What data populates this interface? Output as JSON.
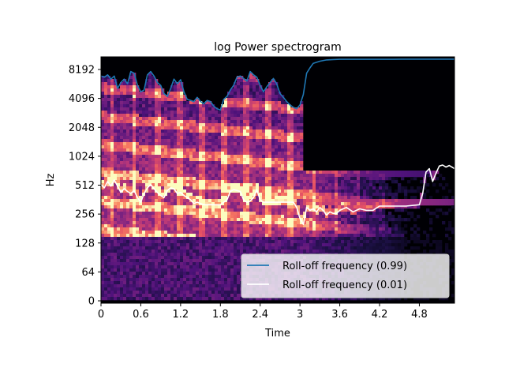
{
  "chart_data": {
    "type": "heatmap",
    "title": "log Power spectrogram",
    "xlabel": "Time",
    "ylabel": "Hz",
    "x_ticks": [
      "0",
      "0.6",
      "1.2",
      "1.8",
      "2.4",
      "3",
      "3.6",
      "4.2",
      "4.8"
    ],
    "x_tick_values": [
      0,
      0.6,
      1.2,
      1.8,
      2.4,
      3.0,
      3.6,
      4.2,
      4.8
    ],
    "y_ticks": [
      "0",
      "64",
      "128",
      "256",
      "512",
      "1024",
      "2048",
      "4096",
      "8192"
    ],
    "y_tick_values": [
      0,
      64,
      128,
      256,
      512,
      1024,
      2048,
      4096,
      8192
    ],
    "xlim": [
      0,
      5.33
    ],
    "y_scale": "symlog",
    "ylim": [
      0,
      11025
    ],
    "colormap": "magma",
    "legend_position": "lower-right",
    "series": [
      {
        "name": "Roll-off frequency (0.99)",
        "color": "#1f77b4",
        "x": [
          0.0,
          0.05,
          0.1,
          0.15,
          0.2,
          0.25,
          0.3,
          0.35,
          0.4,
          0.45,
          0.5,
          0.55,
          0.6,
          0.65,
          0.7,
          0.75,
          0.8,
          0.85,
          0.9,
          0.95,
          1.0,
          1.05,
          1.1,
          1.15,
          1.2,
          1.25,
          1.3,
          1.35,
          1.4,
          1.45,
          1.5,
          1.55,
          1.6,
          1.65,
          1.7,
          1.75,
          1.8,
          1.85,
          1.9,
          1.95,
          2.0,
          2.05,
          2.1,
          2.15,
          2.2,
          2.25,
          2.3,
          2.35,
          2.4,
          2.45,
          2.5,
          2.55,
          2.6,
          2.65,
          2.7,
          2.75,
          2.8,
          2.85,
          2.9,
          2.95,
          3.0,
          3.05,
          3.1,
          3.15,
          3.2,
          3.3,
          3.4,
          3.5,
          3.6,
          3.8,
          4.0,
          4.2,
          4.4,
          4.6,
          4.8,
          5.0,
          5.2,
          5.33
        ],
        "y": [
          7000,
          6800,
          7200,
          6500,
          7000,
          5200,
          6000,
          6500,
          5800,
          7800,
          7500,
          5600,
          4800,
          5000,
          7200,
          7800,
          7000,
          6000,
          5600,
          4600,
          4300,
          5200,
          6500,
          5800,
          6400,
          4800,
          4000,
          3900,
          3800,
          4200,
          3800,
          3600,
          3900,
          3800,
          3400,
          3200,
          3100,
          4000,
          4300,
          5000,
          5600,
          6800,
          7000,
          6600,
          6200,
          7800,
          7200,
          6800,
          5600,
          4800,
          5400,
          6000,
          6600,
          5800,
          4600,
          4200,
          3800,
          3500,
          3300,
          3200,
          3500,
          4500,
          7500,
          8500,
          9500,
          10000,
          10300,
          10400,
          10450,
          10450,
          10450,
          10450,
          10450,
          10500,
          10500,
          10500,
          10500,
          10500
        ]
      },
      {
        "name": "Roll-off frequency (0.01)",
        "color": "#ffffff",
        "x": [
          0.0,
          0.05,
          0.1,
          0.15,
          0.2,
          0.25,
          0.3,
          0.35,
          0.4,
          0.45,
          0.5,
          0.55,
          0.6,
          0.65,
          0.7,
          0.75,
          0.8,
          0.85,
          0.9,
          0.95,
          1.0,
          1.05,
          1.1,
          1.15,
          1.2,
          1.25,
          1.3,
          1.35,
          1.4,
          1.45,
          1.5,
          1.55,
          1.6,
          1.65,
          1.7,
          1.75,
          1.8,
          1.85,
          1.9,
          1.95,
          2.0,
          2.05,
          2.1,
          2.15,
          2.2,
          2.25,
          2.3,
          2.35,
          2.4,
          2.45,
          2.5,
          2.55,
          2.6,
          2.7,
          2.8,
          2.9,
          2.95,
          3.0,
          3.05,
          3.1,
          3.15,
          3.2,
          3.25,
          3.3,
          3.35,
          3.4,
          3.45,
          3.5,
          3.55,
          3.6,
          3.7,
          3.8,
          3.9,
          4.0,
          4.1,
          4.2,
          4.4,
          4.6,
          4.8,
          4.85,
          4.9,
          4.95,
          5.0,
          5.05,
          5.1,
          5.15,
          5.2,
          5.25,
          5.33
        ],
        "y": [
          520,
          480,
          560,
          500,
          580,
          500,
          430,
          470,
          440,
          420,
          450,
          380,
          340,
          420,
          480,
          520,
          470,
          430,
          400,
          380,
          450,
          480,
          470,
          420,
          430,
          400,
          380,
          360,
          330,
          340,
          330,
          320,
          320,
          320,
          320,
          320,
          320,
          340,
          360,
          440,
          460,
          450,
          440,
          360,
          340,
          350,
          380,
          460,
          360,
          340,
          340,
          340,
          340,
          340,
          340,
          340,
          300,
          230,
          200,
          300,
          280,
          290,
          270,
          300,
          280,
          250,
          270,
          260,
          260,
          280,
          300,
          270,
          290,
          280,
          280,
          310,
          310,
          310,
          320,
          420,
          700,
          760,
          560,
          680,
          810,
          830,
          790,
          820,
          760
        ]
      }
    ],
    "legend": [
      "Roll-off frequency (0.99)",
      "Roll-off frequency (0.01)"
    ]
  }
}
